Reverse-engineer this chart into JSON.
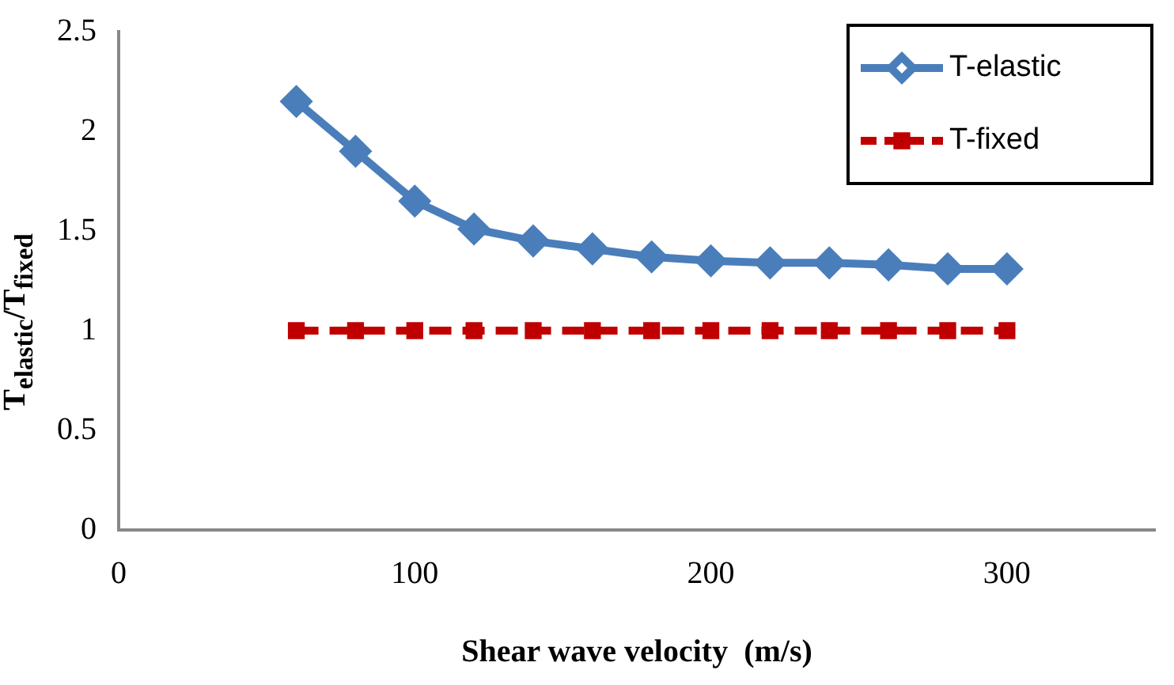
{
  "chart_data": {
    "type": "line",
    "xlabel": "Shear wave velocity  (m/s)",
    "ylabel": "T$_{elastic}$/T$_{fixed}$",
    "x": [
      60,
      80,
      100,
      120,
      140,
      160,
      180,
      200,
      220,
      240,
      260,
      280,
      300
    ],
    "series": [
      {
        "name": "T-elastic",
        "color": "#4a7ebb",
        "marker": "diamond",
        "line_style": "solid",
        "values": [
          2.15,
          1.9,
          1.65,
          1.51,
          1.45,
          1.41,
          1.37,
          1.35,
          1.34,
          1.34,
          1.33,
          1.31,
          1.31
        ]
      },
      {
        "name": "T-fixed",
        "color": "#c00000",
        "marker": "square",
        "line_style": "dashed",
        "values": [
          1,
          1,
          1,
          1,
          1,
          1,
          1,
          1,
          1,
          1,
          1,
          1,
          1
        ]
      }
    ],
    "xlim": [
      0,
      350
    ],
    "xticks": [
      0,
      100,
      200,
      300
    ],
    "ylim": [
      0,
      2.5
    ],
    "yticks": [
      0,
      0.5,
      1,
      1.5,
      2,
      2.5
    ],
    "grid": false,
    "legend": "top right"
  }
}
